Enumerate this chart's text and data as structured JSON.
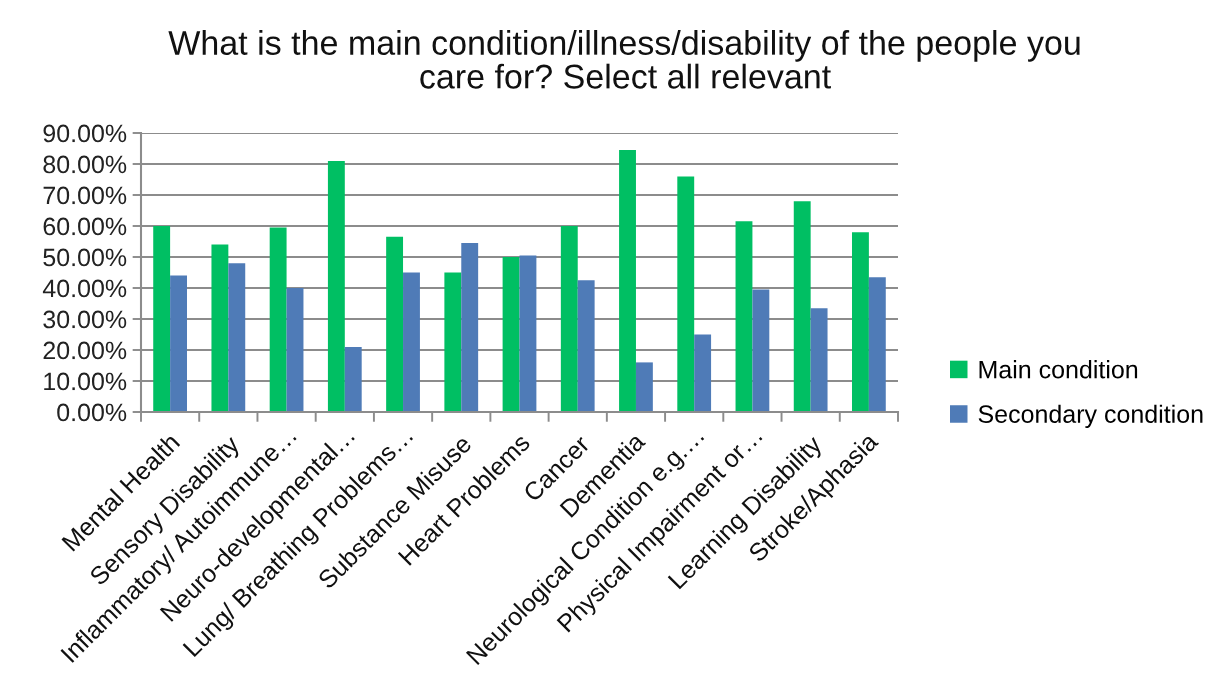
{
  "chart_data": {
    "type": "bar",
    "title": "What is the main condition/illness/disability of the people you care for? Select all relevant",
    "categories": [
      "Mental Health",
      "Sensory Disability",
      "Inflammatory/ Autoimmune…",
      "Neuro-developmental…",
      "Lung/ Breathing Problems…",
      "Substance Misuse",
      "Heart Problems",
      "Cancer",
      "Dementia",
      "Neurological Condition e.g.…",
      "Physical Impairment or…",
      "Learning Disability",
      "Stroke/Aphasia"
    ],
    "series": [
      {
        "name": "Main condition",
        "color": "#00bf63",
        "values": [
          60,
          54,
          59.5,
          81,
          56.5,
          45,
          50,
          60,
          84.5,
          76,
          61.5,
          68,
          58
        ]
      },
      {
        "name": "Secondary condition",
        "color": "#4f7bb7",
        "values": [
          44,
          48,
          40,
          21,
          45,
          54.5,
          50.5,
          42.5,
          16,
          25,
          39.5,
          33.5,
          43.5
        ]
      }
    ],
    "ylim": [
      0,
      90
    ],
    "yticks": [
      {
        "value": 0,
        "label": "0.00%"
      },
      {
        "value": 10,
        "label": "10.00%"
      },
      {
        "value": 20,
        "label": "20.00%"
      },
      {
        "value": 30,
        "label": "30.00%"
      },
      {
        "value": 40,
        "label": "40.00%"
      },
      {
        "value": 50,
        "label": "50.00%"
      },
      {
        "value": 60,
        "label": "60.00%"
      },
      {
        "value": 70,
        "label": "70.00%"
      },
      {
        "value": 80,
        "label": "80.00%"
      },
      {
        "value": 90,
        "label": "90.00%"
      }
    ],
    "grid": "y",
    "legend": "right"
  }
}
